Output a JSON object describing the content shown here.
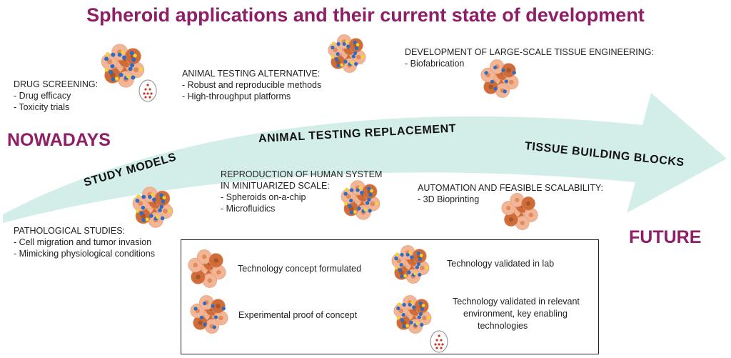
{
  "title": "Spheroid applications and their current state of development",
  "eras": {
    "now": "NOWADAYS",
    "future": "FUTURE"
  },
  "arrow_labels": {
    "study": "STUDY MODELS",
    "replacement": "ANIMAL TESTING REPLACEMENT",
    "tissue": "TISSUE BUILDING BLOCKS"
  },
  "colors": {
    "title": "#8e1f66",
    "arrow": "#d3eee9",
    "cell_light": "#f2b596",
    "cell_dark": "#cf6d3a",
    "nucleus": "#2e6cc4",
    "marker": "#f1d534"
  },
  "blocks": {
    "drug": {
      "heading": "DRUG SCREENING:",
      "items": [
        "- Drug efficacy",
        "- Toxicity trials"
      ]
    },
    "animal": {
      "heading": "ANIMAL TESTING ALTERNATIVE:",
      "items": [
        "- Robust and reproducible methods",
        "- High-throughput platforms"
      ]
    },
    "large": {
      "heading": "DEVELOPMENT OF LARGE-SCALE TISSUE ENGINEERING:",
      "items": [
        "- Biofabrication"
      ]
    },
    "patho": {
      "heading": "PATHOLOGICAL STUDIES:",
      "items": [
        "- Cell migration and tumor invasion",
        "- Mimicking physiological conditions"
      ]
    },
    "repro": {
      "heading1": "REPRODUCTION OF HUMAN SYSTEM",
      "heading2": "IN MINITUARIZED SCALE:",
      "items": [
        "- Spheroids on-a-chip",
        "- Microfluidics"
      ]
    },
    "auto": {
      "heading": "AUTOMATION AND FEASIBLE SCALABILITY:",
      "items": [
        "- 3D Bioprinting"
      ]
    }
  },
  "legend": {
    "l1": "Technology concept formulated",
    "l2": "Technology validated in lab",
    "l3": "Experimental proof of concept",
    "l4_line1": "Technology validated in relevant",
    "l4_line2": "environment,  key enabling",
    "l4_line3": "technologies"
  }
}
